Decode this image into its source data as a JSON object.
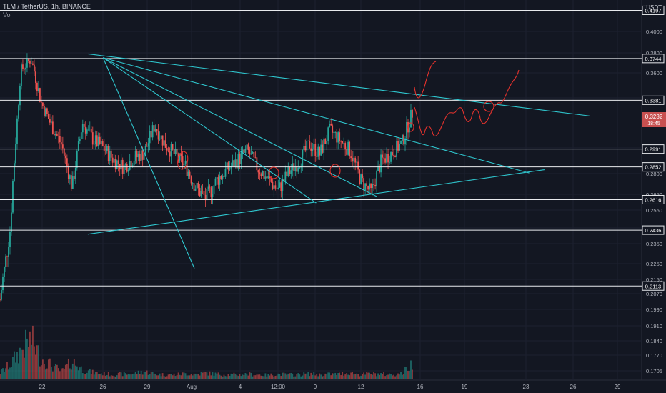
{
  "header": {
    "title": "TLM / TetherUS, 1h, BINANCE",
    "volume_label": "Vol"
  },
  "axis": {
    "unit": "USDT"
  },
  "colors": {
    "background": "#131722",
    "up_candle": "#26a69a",
    "down_candle": "#ef5350",
    "trendline": "#2fc7cf",
    "level_line": "#e8eaed",
    "drawing": "#e5322d",
    "current_price_bg": "#c85050"
  },
  "chart_data": {
    "type": "candlestick",
    "symbol": "TLM / TetherUS",
    "interval": "1h",
    "exchange": "BINANCE",
    "y_ticks": [
      0.4,
      0.38,
      0.36,
      0.34,
      0.3,
      0.28,
      0.265,
      0.255,
      0.245,
      0.235,
      0.225,
      0.215,
      0.207,
      0.199,
      0.191,
      0.184,
      0.177,
      0.1705
    ],
    "x_ticks": [
      "22",
      "26",
      "29",
      "Aug",
      "4",
      "12:00",
      "9",
      "12",
      "16",
      "19",
      "23",
      "26",
      "29"
    ],
    "horizontal_levels": [
      0.4197,
      0.3744,
      0.3381,
      0.2991,
      0.2852,
      0.2616,
      0.2436,
      0.2113
    ],
    "current_price": {
      "value": "0.3232",
      "countdown": "18:45"
    },
    "price_series": [
      0.204,
      0.245,
      0.362,
      0.374,
      0.336,
      0.318,
      0.302,
      0.27,
      0.32,
      0.307,
      0.3,
      0.291,
      0.285,
      0.292,
      0.296,
      0.318,
      0.303,
      0.294,
      0.286,
      0.27,
      0.262,
      0.275,
      0.283,
      0.29,
      0.298,
      0.284,
      0.276,
      0.268,
      0.281,
      0.289,
      0.303,
      0.295,
      0.314,
      0.306,
      0.297,
      0.275,
      0.266,
      0.29,
      0.296,
      0.304,
      0.328
    ],
    "volume_series": [
      12,
      28,
      55,
      78,
      40,
      26,
      14,
      34,
      18,
      12,
      10,
      8,
      9,
      10,
      14,
      9,
      8,
      8,
      10,
      9,
      11,
      9,
      8,
      8,
      9,
      8,
      7,
      9,
      8,
      8,
      10,
      8,
      9,
      9,
      12,
      8,
      10,
      9,
      8,
      10,
      30
    ],
    "trendlines": [
      {
        "from": [
          "Jul 26",
          0.3752
        ],
        "to": [
          "Aug 1",
          0.222
        ]
      },
      {
        "from": [
          "Jul 26",
          0.3752
        ],
        "to": [
          "Aug 9",
          0.2595
        ]
      },
      {
        "from": [
          "Jul 26",
          0.3752
        ],
        "to": [
          "Aug 13",
          0.2635
        ]
      },
      {
        "from": [
          "Jul 26",
          0.3752
        ],
        "to": [
          "Aug 23",
          0.2805
        ]
      },
      {
        "from": [
          "Jul 25",
          0.379
        ],
        "to": [
          "Aug 27",
          0.3255
        ]
      },
      {
        "from": [
          "Jul 25",
          0.241
        ],
        "to": [
          "Aug 24",
          0.283
        ]
      }
    ]
  }
}
